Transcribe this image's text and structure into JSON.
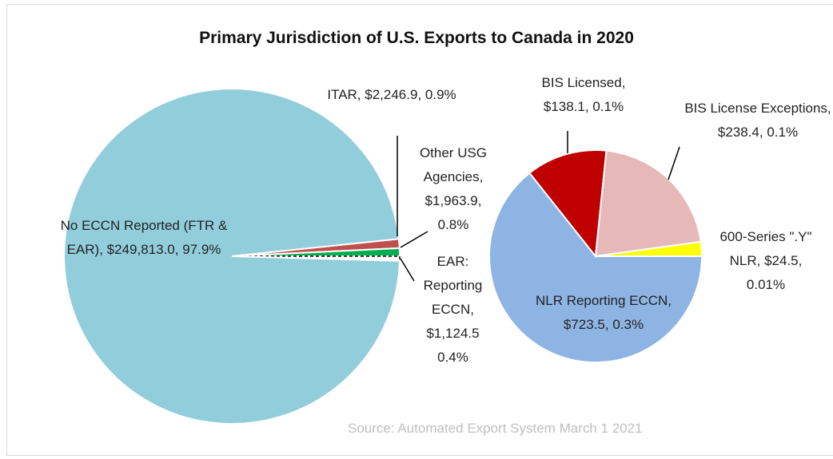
{
  "chart_data": [
    {
      "type": "pie",
      "title": "Primary Jurisdiction of U.S. Exports to Canada in 2020",
      "annotation": "Source: Automated Export System March 1 2021",
      "categories": [
        "ITAR,",
        "Other USG Agencies,",
        "EAR: Reporting ECCN,",
        "No ECCN Reported (FTR & EAR),"
      ],
      "values": [
        2246.9,
        1963.9,
        1124.5,
        249813.0
      ],
      "value_labels": [
        "$2,246.9, 0.9%",
        "$1,963.9, 0.8%",
        "$1,124.5 0.4%",
        "$249,813.0, 97.9%"
      ],
      "colors": [
        "#c0504d",
        "#00b050",
        "#ffffff",
        "#92cddc"
      ]
    },
    {
      "type": "pie",
      "categories": [
        "NLR Reporting ECCN,",
        "BIS Licensed,",
        "BIS License Exceptions,",
        "600-Series \".Y\" NLR,"
      ],
      "values": [
        723.5,
        138.1,
        238.4,
        24.5
      ],
      "value_labels": [
        "$723.5, 0.3%",
        "$138.1, 0.1%",
        "$238.4, 0.1%",
        "$24.5, 0.01%"
      ],
      "colors": [
        "#8eb4e3",
        "#c00000",
        "#e6b9b8",
        "#ffff00"
      ]
    }
  ]
}
